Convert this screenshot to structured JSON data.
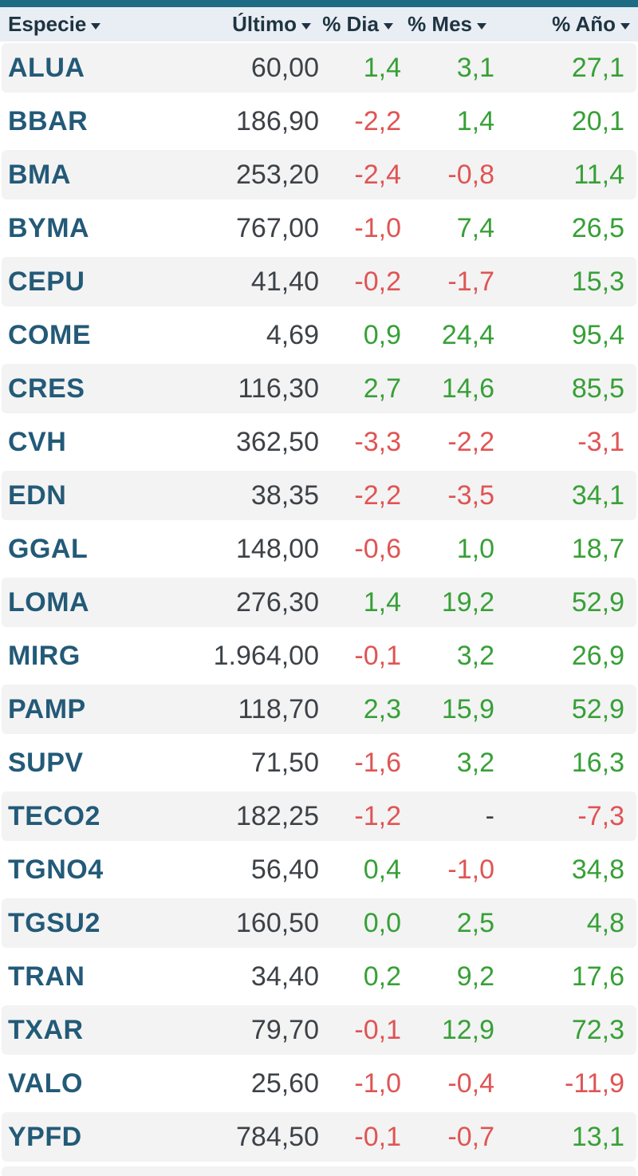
{
  "theme": {
    "accent_bar": "#1e6b85",
    "header_bg": "#e9eef4",
    "header_text": "#1f3442",
    "stripe": "#f3f3f3",
    "ticker": "#235a78",
    "price_text": "#3d4248",
    "positive": "#37a037",
    "negative": "#e05454"
  },
  "header": {
    "columns": [
      {
        "key": "especie",
        "label": "Especie"
      },
      {
        "key": "ultimo",
        "label": "Último"
      },
      {
        "key": "dia",
        "label": "% Dia"
      },
      {
        "key": "mes",
        "label": "% Mes"
      },
      {
        "key": "ano",
        "label": "% Año"
      }
    ]
  },
  "table": {
    "rows": [
      {
        "especie": "ALUA",
        "ultimo": "60,00",
        "dia": "1,4",
        "mes": "3,1",
        "ano": "27,1"
      },
      {
        "especie": "BBAR",
        "ultimo": "186,90",
        "dia": "-2,2",
        "mes": "1,4",
        "ano": "20,1"
      },
      {
        "especie": "BMA",
        "ultimo": "253,20",
        "dia": "-2,4",
        "mes": "-0,8",
        "ano": "11,4"
      },
      {
        "especie": "BYMA",
        "ultimo": "767,00",
        "dia": "-1,0",
        "mes": "7,4",
        "ano": "26,5"
      },
      {
        "especie": "CEPU",
        "ultimo": "41,40",
        "dia": "-0,2",
        "mes": "-1,7",
        "ano": "15,3"
      },
      {
        "especie": "COME",
        "ultimo": "4,69",
        "dia": "0,9",
        "mes": "24,4",
        "ano": "95,4"
      },
      {
        "especie": "CRES",
        "ultimo": "116,30",
        "dia": "2,7",
        "mes": "14,6",
        "ano": "85,5"
      },
      {
        "especie": "CVH",
        "ultimo": "362,50",
        "dia": "-3,3",
        "mes": "-2,2",
        "ano": "-3,1"
      },
      {
        "especie": "EDN",
        "ultimo": "38,35",
        "dia": "-2,2",
        "mes": "-3,5",
        "ano": "34,1"
      },
      {
        "especie": "GGAL",
        "ultimo": "148,00",
        "dia": "-0,6",
        "mes": "1,0",
        "ano": "18,7"
      },
      {
        "especie": "LOMA",
        "ultimo": "276,30",
        "dia": "1,4",
        "mes": "19,2",
        "ano": "52,9"
      },
      {
        "especie": "MIRG",
        "ultimo": "1.964,00",
        "dia": "-0,1",
        "mes": "3,2",
        "ano": "26,9"
      },
      {
        "especie": "PAMP",
        "ultimo": "118,70",
        "dia": "2,3",
        "mes": "15,9",
        "ano": "52,9"
      },
      {
        "especie": "SUPV",
        "ultimo": "71,50",
        "dia": "-1,6",
        "mes": "3,2",
        "ano": "16,3"
      },
      {
        "especie": "TECO2",
        "ultimo": "182,25",
        "dia": "-1,2",
        "mes": "-",
        "ano": "-7,3"
      },
      {
        "especie": "TGNO4",
        "ultimo": "56,40",
        "dia": "0,4",
        "mes": "-1,0",
        "ano": "34,8"
      },
      {
        "especie": "TGSU2",
        "ultimo": "160,50",
        "dia": "0,0",
        "mes": "2,5",
        "ano": "4,8"
      },
      {
        "especie": "TRAN",
        "ultimo": "34,40",
        "dia": "0,2",
        "mes": "9,2",
        "ano": "17,6"
      },
      {
        "especie": "TXAR",
        "ultimo": "79,70",
        "dia": "-0,1",
        "mes": "12,9",
        "ano": "72,3"
      },
      {
        "especie": "VALO",
        "ultimo": "25,60",
        "dia": "-1,0",
        "mes": "-0,4",
        "ano": "-11,9"
      },
      {
        "especie": "YPFD",
        "ultimo": "784,50",
        "dia": "-0,1",
        "mes": "-0,7",
        "ano": "13,1"
      }
    ]
  }
}
